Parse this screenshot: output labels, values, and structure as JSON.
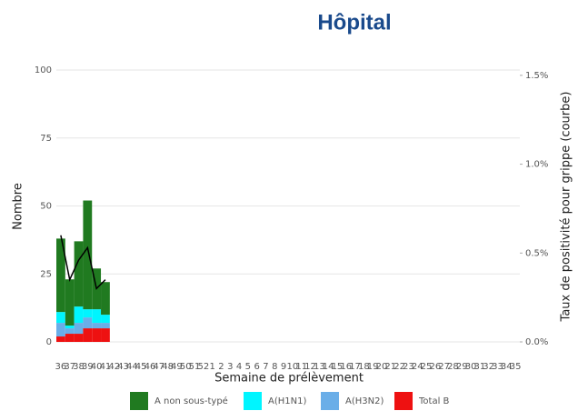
{
  "chart_data": {
    "type": "stacked-bar-line",
    "title": "Hôpital",
    "x_label": "Semaine de prélèvement",
    "y_label": "Nombre",
    "y2_label": "Taux de positivité pour grippe (courbe)",
    "categories": [
      "36",
      "37",
      "38",
      "39",
      "40",
      "41",
      "42",
      "43",
      "44",
      "45",
      "46",
      "47",
      "48",
      "49",
      "50",
      "51",
      "52",
      "1",
      "2",
      "3",
      "4",
      "5",
      "6",
      "7",
      "8",
      "9",
      "10",
      "11",
      "12",
      "13",
      "14",
      "15",
      "16",
      "17",
      "18",
      "19",
      "20",
      "21",
      "22",
      "23",
      "24",
      "25",
      "26",
      "27",
      "28",
      "29",
      "30",
      "31",
      "32",
      "33",
      "34",
      "35"
    ],
    "series": [
      {
        "name": "A non sous-typé",
        "color": "#207a20",
        "values": [
          27,
          17,
          24,
          40,
          15,
          12,
          null,
          null,
          null,
          null,
          null,
          null,
          null,
          null,
          null,
          null,
          null,
          null,
          null,
          null,
          null,
          null,
          null,
          null,
          null,
          null,
          null,
          null,
          null,
          null,
          null,
          null,
          null,
          null,
          null,
          null,
          null,
          null,
          null,
          null,
          null,
          null,
          null,
          null,
          null,
          null,
          null,
          null,
          null,
          null,
          null,
          null
        ]
      },
      {
        "name": "A(H1N1)",
        "color": "#00f5ff",
        "values": [
          4,
          1,
          6,
          3,
          5,
          3,
          null,
          null,
          null,
          null,
          null,
          null,
          null,
          null,
          null,
          null,
          null,
          null,
          null,
          null,
          null,
          null,
          null,
          null,
          null,
          null,
          null,
          null,
          null,
          null,
          null,
          null,
          null,
          null,
          null,
          null,
          null,
          null,
          null,
          null,
          null,
          null,
          null,
          null,
          null,
          null,
          null,
          null,
          null,
          null,
          null,
          null
        ]
      },
      {
        "name": "A(H3N2)",
        "color": "#6aaee8",
        "values": [
          5,
          2,
          4,
          4,
          2,
          2,
          null,
          null,
          null,
          null,
          null,
          null,
          null,
          null,
          null,
          null,
          null,
          null,
          null,
          null,
          null,
          null,
          null,
          null,
          null,
          null,
          null,
          null,
          null,
          null,
          null,
          null,
          null,
          null,
          null,
          null,
          null,
          null,
          null,
          null,
          null,
          null,
          null,
          null,
          null,
          null,
          null,
          null,
          null,
          null,
          null,
          null
        ]
      },
      {
        "name": "Total B",
        "color": "#ee1111",
        "values": [
          2,
          3,
          3,
          5,
          5,
          5,
          null,
          null,
          null,
          null,
          null,
          null,
          null,
          null,
          null,
          null,
          null,
          null,
          null,
          null,
          null,
          null,
          null,
          null,
          null,
          null,
          null,
          null,
          null,
          null,
          null,
          null,
          null,
          null,
          null,
          null,
          null,
          null,
          null,
          null,
          null,
          null,
          null,
          null,
          null,
          null,
          null,
          null,
          null,
          null,
          null,
          null
        ]
      }
    ],
    "line": {
      "axis": "y2",
      "color": "#000000",
      "values": [
        0.6,
        0.35,
        0.46,
        0.53,
        0.3,
        0.35,
        null,
        null,
        null,
        null,
        null,
        null,
        null,
        null,
        null,
        null,
        null,
        null,
        null,
        null,
        null,
        null,
        null,
        null,
        null,
        null,
        null,
        null,
        null,
        null,
        null,
        null,
        null,
        null,
        null,
        null,
        null,
        null,
        null,
        null,
        null,
        null,
        null,
        null,
        null,
        null,
        null,
        null,
        null,
        null,
        null,
        null
      ]
    },
    "ylim": [
      0,
      100
    ],
    "yticks": [
      0,
      25,
      50,
      75,
      100
    ],
    "y2lim": [
      0,
      1.53
    ],
    "y2ticks": [
      {
        "value": 0,
        "label": "0.0%"
      },
      {
        "value": 0.5,
        "label": "0.5%"
      },
      {
        "value": 1,
        "label": "1.0%"
      },
      {
        "value": 1.5,
        "label": "1.5%"
      }
    ],
    "grid": true
  }
}
